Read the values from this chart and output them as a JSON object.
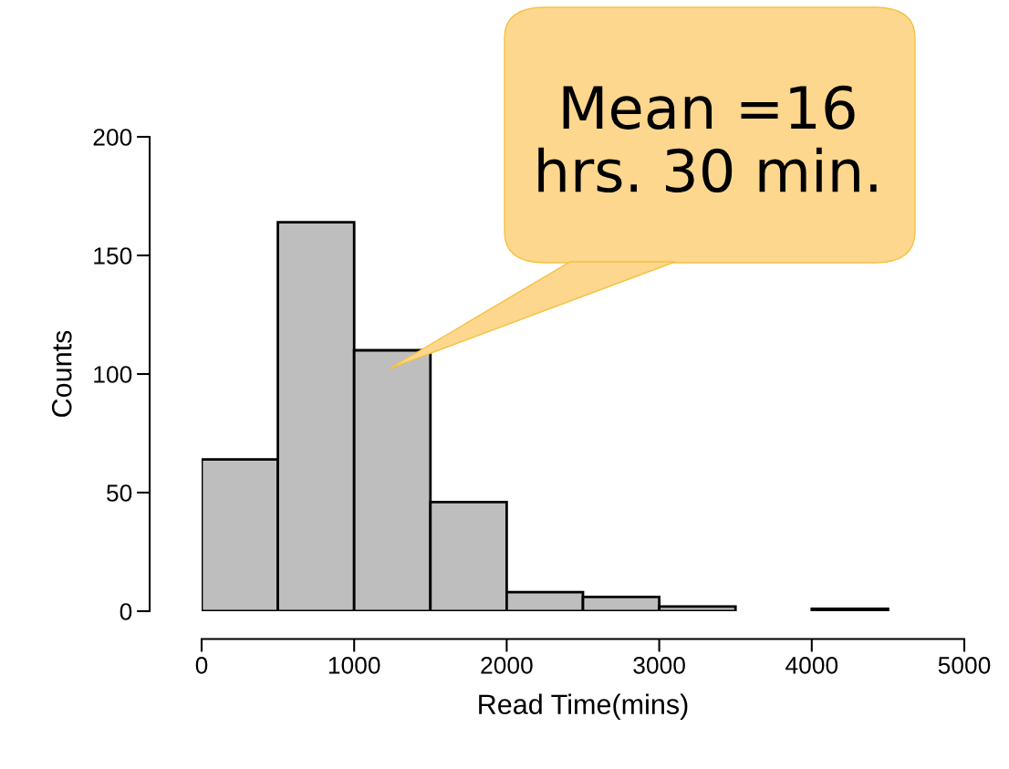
{
  "chart_data": {
    "type": "histogram",
    "xlabel": "Read Time(mins)",
    "ylabel": "Counts",
    "bins": [
      0,
      500,
      1000,
      1500,
      2000,
      2500,
      3000,
      3500,
      4000,
      4500
    ],
    "values": [
      64,
      164,
      110,
      46,
      8,
      6,
      2,
      0,
      1
    ],
    "color": "#bebebe",
    "xlim": [
      0,
      5000
    ],
    "xticks": [
      0,
      1000,
      2000,
      3000,
      4000,
      5000
    ],
    "ylim": [
      0,
      200
    ],
    "yticks": [
      0,
      50,
      100,
      150,
      200
    ],
    "grid": false,
    "annotations": [
      "Mean =16\nhrs. 30 min."
    ]
  }
}
